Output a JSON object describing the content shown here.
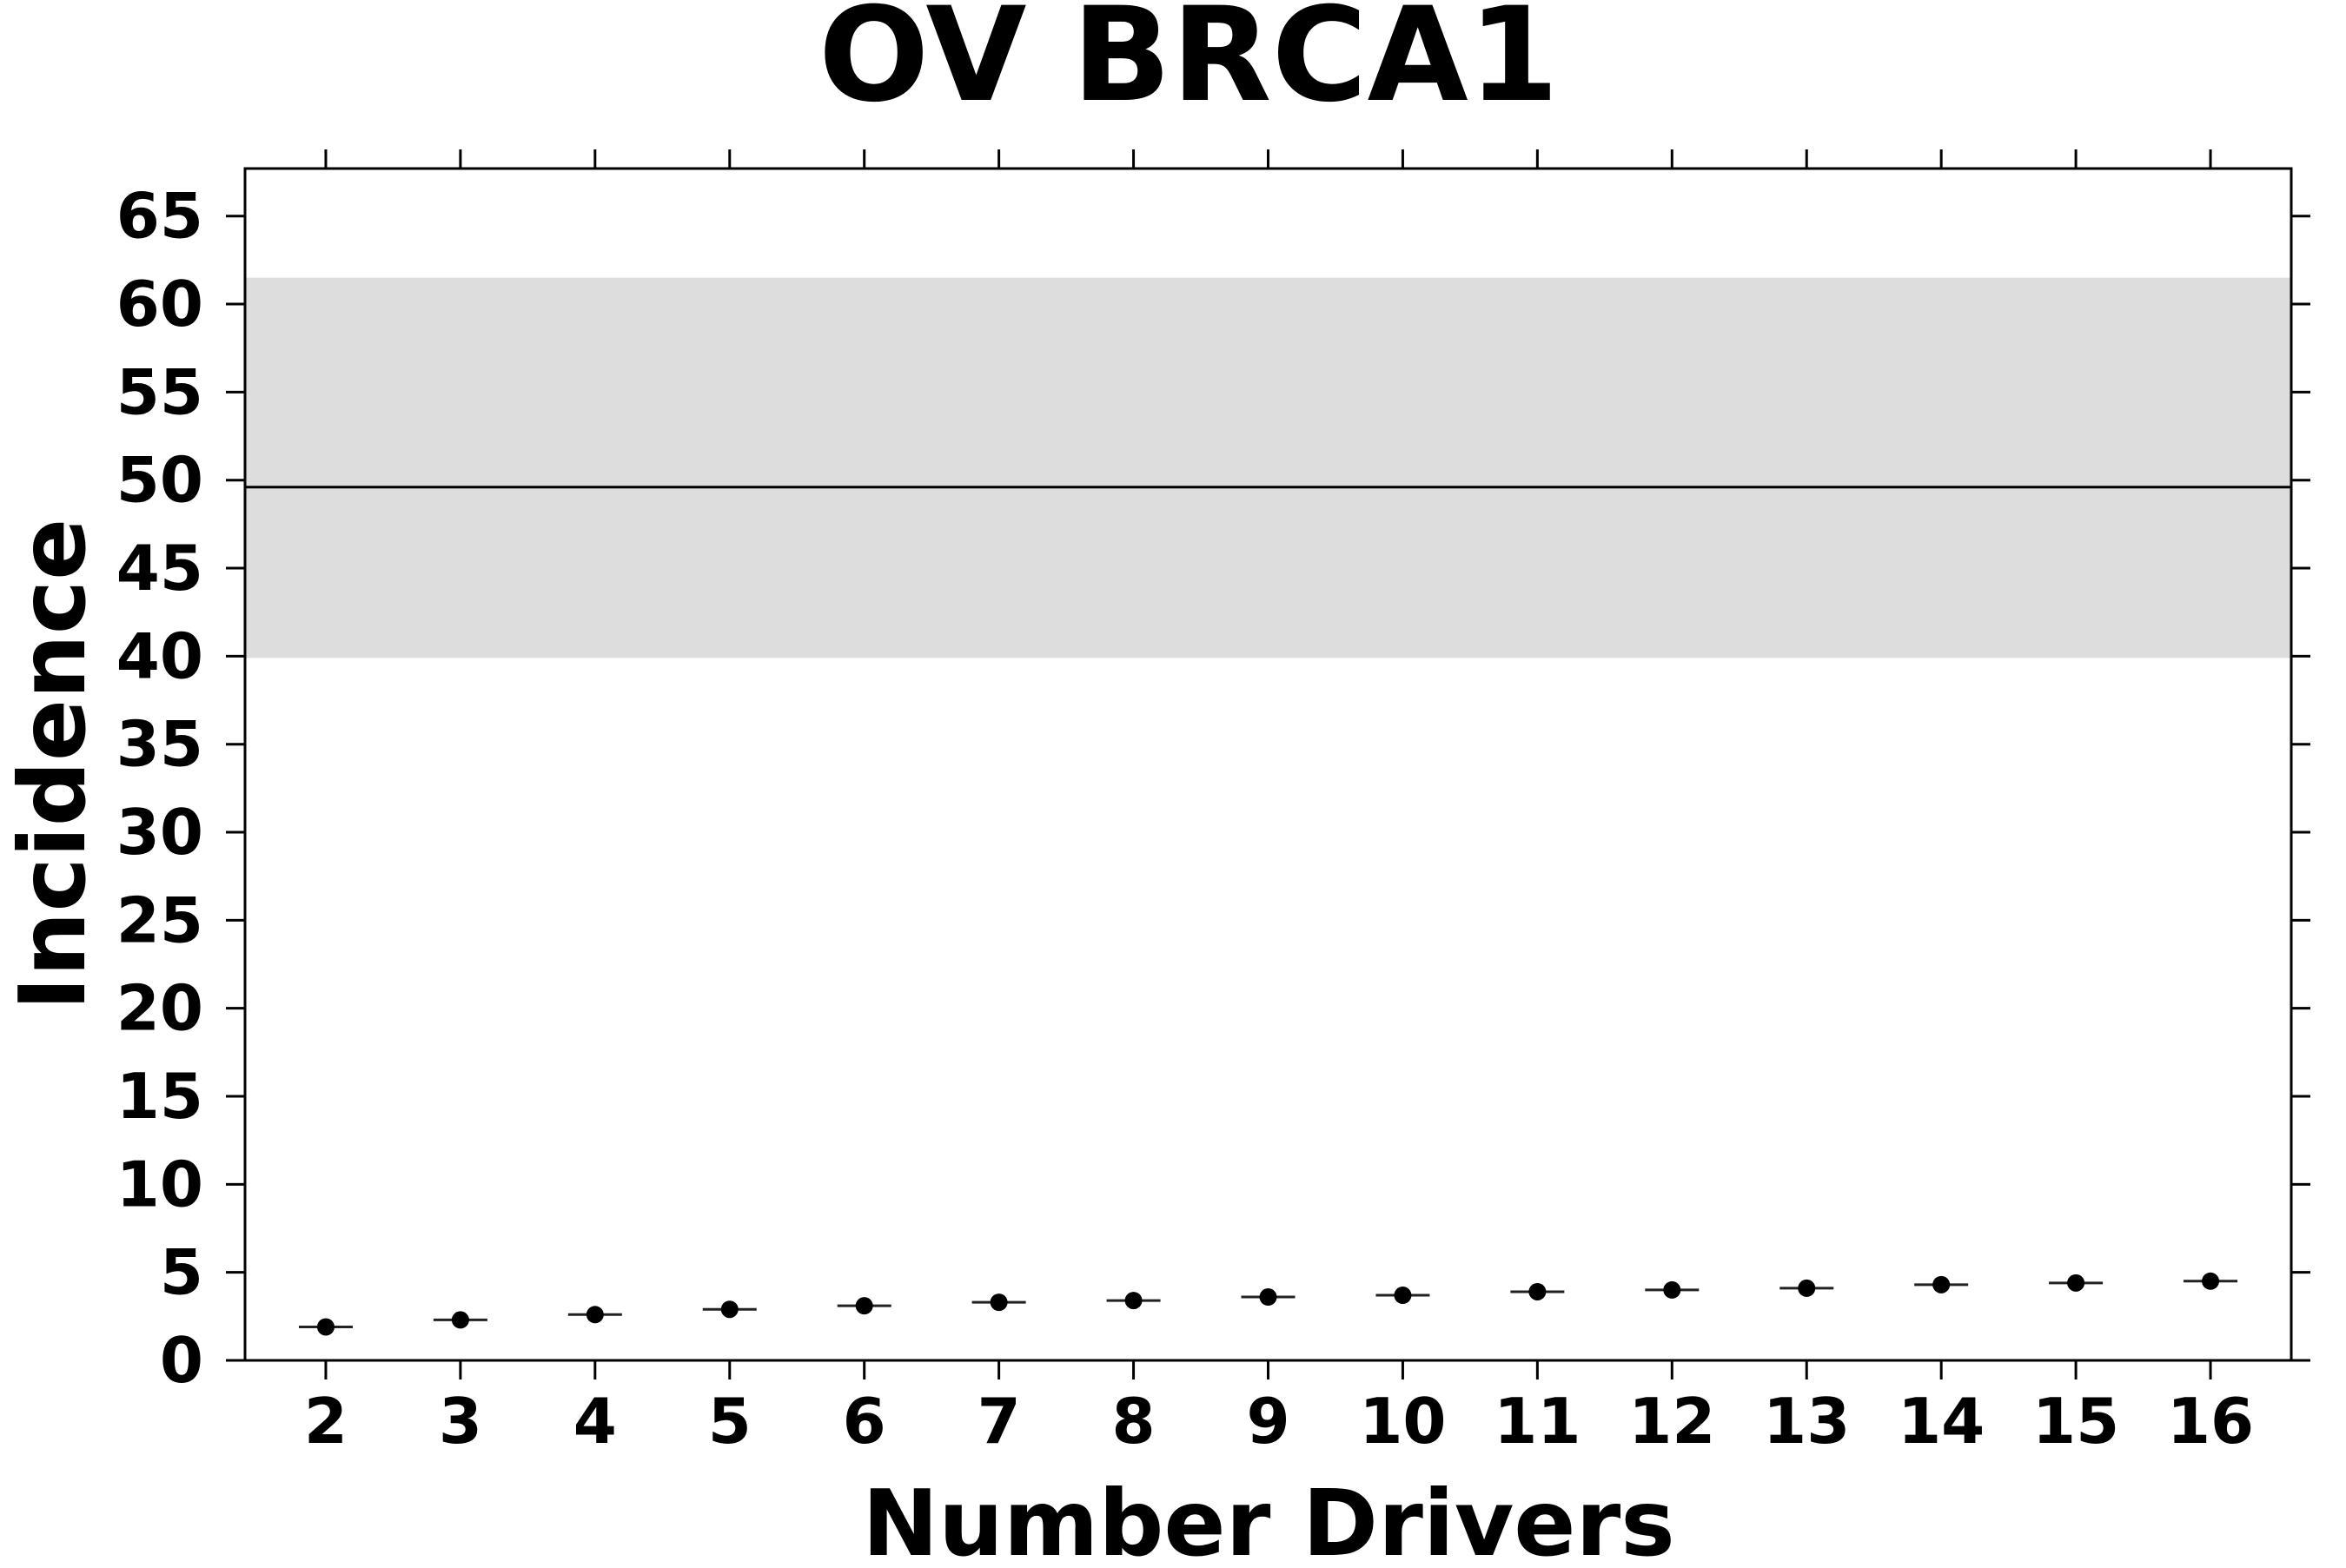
{
  "chart_data": {
    "type": "scatter",
    "title": "OV BRCA1",
    "xlabel": "Number Drivers",
    "ylabel": "Incidence",
    "x": [
      2,
      3,
      4,
      5,
      6,
      7,
      8,
      9,
      10,
      11,
      12,
      13,
      14,
      15,
      16
    ],
    "y": [
      1.9,
      2.3,
      2.6,
      2.9,
      3.1,
      3.3,
      3.4,
      3.6,
      3.7,
      3.9,
      4.0,
      4.1,
      4.3,
      4.4,
      4.5
    ],
    "xlim": [
      1.4,
      16.6
    ],
    "ylim": [
      0,
      67.7
    ],
    "xticks": [
      2,
      3,
      4,
      5,
      6,
      7,
      8,
      9,
      10,
      11,
      12,
      13,
      14,
      15,
      16
    ],
    "yticks": [
      0,
      5,
      10,
      15,
      20,
      25,
      30,
      35,
      40,
      45,
      50,
      55,
      60,
      65
    ],
    "reference_line": 49.6,
    "reference_band": [
      39.9,
      61.5
    ],
    "band_color": "#dddddd",
    "grid": false,
    "legend": "none"
  }
}
